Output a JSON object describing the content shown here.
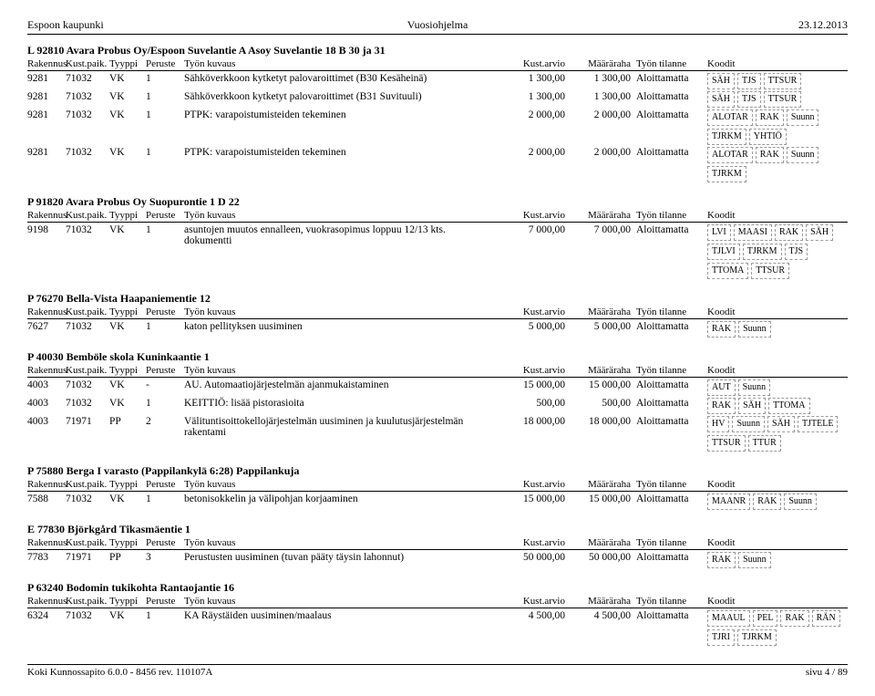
{
  "header": {
    "left": "Espoon kaupunki",
    "center": "Vuosiohjelma",
    "right": "23.12.2013"
  },
  "colHeaders": {
    "rakennus": "Rakennus",
    "kust": "Kust.paik.",
    "tyyppi": "Tyyppi",
    "peruste": "Peruste",
    "kuvaus": "Työn kuvaus",
    "arvio": "Kust.arvio",
    "maararaha": "Määräraha",
    "tilanne": "Työn tilanne",
    "koodit": "Koodit"
  },
  "sections": [
    {
      "title": "L  92810   Avara Probus Oy/Espoon Suvelantie A Asoy   Suvelantie 18 B 30 ja 31",
      "rows": [
        {
          "rak": "9281",
          "kust": "71032",
          "tyyp": "VK",
          "per": "1",
          "desc": "Sähköverkkoon kytketyt palovaroittimet (B30 Kesäheinä)",
          "arvio": "1 300,00",
          "maar": "1 300,00",
          "til": "Aloittamatta",
          "tags": [
            "SÄH",
            "TJS",
            "TTSUR"
          ]
        },
        {
          "rak": "9281",
          "kust": "71032",
          "tyyp": "VK",
          "per": "1",
          "desc": "Sähköverkkoon kytketyt palovaroittimet (B31 Suvituuli)",
          "arvio": "1 300,00",
          "maar": "1 300,00",
          "til": "Aloittamatta",
          "tags": [
            "SÄH",
            "TJS",
            "TTSUR"
          ]
        },
        {
          "rak": "9281",
          "kust": "71032",
          "tyyp": "VK",
          "per": "1",
          "desc": "PTPK: varapoistumisteiden tekeminen",
          "arvio": "2 000,00",
          "maar": "2 000,00",
          "til": "Aloittamatta",
          "tags": [
            "ALOTAR",
            "RAK",
            "Suunn",
            "TJRKM",
            "YHTIÖ"
          ]
        },
        {
          "rak": "9281",
          "kust": "71032",
          "tyyp": "VK",
          "per": "1",
          "desc": "PTPK: varapoistumisteiden tekeminen",
          "arvio": "2 000,00",
          "maar": "2 000,00",
          "til": "Aloittamatta",
          "tags": [
            "ALOTAR",
            "RAK",
            "Suunn",
            "TJRKM"
          ]
        }
      ]
    },
    {
      "title": "P  91820   Avara Probus Oy   Suopurontie 1 D 22",
      "rows": [
        {
          "rak": "9198",
          "kust": "71032",
          "tyyp": "VK",
          "per": "1",
          "desc": "asuntojen muutos ennalleen, vuokrasopimus loppuu 12/13 kts. dokumentti",
          "arvio": "7 000,00",
          "maar": "7 000,00",
          "til": "Aloittamatta",
          "tags": [
            "LVI",
            "MAASI",
            "RAK",
            "SÄH",
            "TJLVI",
            "TJRKM",
            "TJS",
            "TTOMA",
            "TTSUR"
          ]
        }
      ]
    },
    {
      "title": "P  76270   Bella-Vista   Haapaniementie 12",
      "rows": [
        {
          "rak": "7627",
          "kust": "71032",
          "tyyp": "VK",
          "per": "1",
          "desc": "katon pellityksen uusiminen",
          "arvio": "5 000,00",
          "maar": "5 000,00",
          "til": "Aloittamatta",
          "tags": [
            "RAK",
            "Suunn"
          ]
        }
      ]
    },
    {
      "title": "P  40030   Bemböle skola   Kuninkaantie 1",
      "rows": [
        {
          "rak": "4003",
          "kust": "71032",
          "tyyp": "VK",
          "per": "-",
          "desc": "AU. Automaatiojärjestelmän ajanmukaistaminen",
          "arvio": "15 000,00",
          "maar": "15 000,00",
          "til": "Aloittamatta",
          "tags": [
            "AUT",
            "Suunn"
          ]
        },
        {
          "rak": "4003",
          "kust": "71032",
          "tyyp": "VK",
          "per": "1",
          "desc": "KEITTIÖ: lisää pistorasioita",
          "arvio": "500,00",
          "maar": "500,00",
          "til": "Aloittamatta",
          "tags": [
            "RAK",
            "SÄH",
            "TTOMA"
          ]
        },
        {
          "rak": "4003",
          "kust": "71971",
          "tyyp": "PP",
          "per": "2",
          "desc": "Välituntisoittokellojärjestelmän uusiminen ja kuulutusjärjestelmän rakentami",
          "arvio": "18 000,00",
          "maar": "18 000,00",
          "til": "Aloittamatta",
          "tags": [
            "HV",
            "Suunn",
            "SÄH",
            "TJTELE",
            "TTSUR",
            "TTUR"
          ]
        }
      ]
    },
    {
      "title": "P  75880   Berga I varasto (Pappilankylä 6:28)   Pappilankuja",
      "rows": [
        {
          "rak": "7588",
          "kust": "71032",
          "tyyp": "VK",
          "per": "1",
          "desc": "betonisokkelin ja välipohjan korjaaminen",
          "arvio": "15 000,00",
          "maar": "15 000,00",
          "til": "Aloittamatta",
          "tags": [
            "MAANR",
            "RAK",
            "Suunn"
          ]
        }
      ]
    },
    {
      "title": "E  77830   Björkgård   Tikasmäentie 1",
      "rows": [
        {
          "rak": "7783",
          "kust": "71971",
          "tyyp": "PP",
          "per": "3",
          "desc": "Perustusten uusiminen (tuvan pääty täysin lahonnut)",
          "arvio": "50 000,00",
          "maar": "50 000,00",
          "til": "Aloittamatta",
          "tags": [
            "RAK",
            "Suunn"
          ]
        }
      ]
    },
    {
      "title": "P  63240   Bodomin tukikohta   Rantaojantie 16",
      "rows": [
        {
          "rak": "6324",
          "kust": "71032",
          "tyyp": "VK",
          "per": "1",
          "desc": "KA Räystäiden uusiminen/maalaus",
          "arvio": "4 500,00",
          "maar": "4 500,00",
          "til": "Aloittamatta",
          "tags": [
            "MAAUL",
            "PEL",
            "RAK",
            "RÄN",
            "TJRI",
            "TJRKM"
          ]
        }
      ]
    }
  ],
  "footer": {
    "left": "Koki Kunnossapito 6.0.0 - 8456 rev. 110107A",
    "right": "sivu 4 / 89"
  }
}
